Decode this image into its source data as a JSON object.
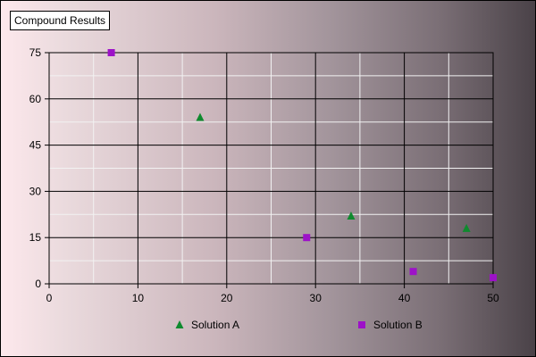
{
  "chart_data": {
    "type": "scatter",
    "title": "Compound Results",
    "xlabel": "",
    "ylabel": "",
    "xlim": [
      0,
      50
    ],
    "ylim": [
      0,
      75
    ],
    "xticks": [
      0,
      10,
      20,
      30,
      40,
      50
    ],
    "yticks": [
      0,
      15,
      30,
      45,
      60,
      75
    ],
    "grid": true,
    "legend_position": "bottom",
    "series": [
      {
        "name": "Solution A",
        "marker": "triangle",
        "color": "#0f8a2e",
        "points": [
          {
            "x": 17,
            "y": 54
          },
          {
            "x": 34,
            "y": 22
          },
          {
            "x": 47,
            "y": 18
          }
        ]
      },
      {
        "name": "Solution B",
        "marker": "square",
        "color": "#9d12c8",
        "points": [
          {
            "x": 7,
            "y": 75
          },
          {
            "x": 29,
            "y": 15
          },
          {
            "x": 41,
            "y": 4
          },
          {
            "x": 50,
            "y": 2
          }
        ]
      }
    ]
  }
}
